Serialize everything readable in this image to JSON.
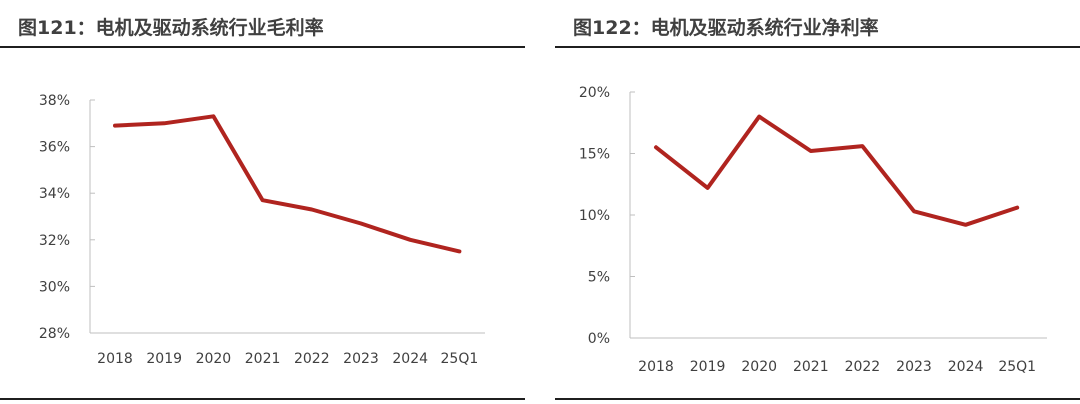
{
  "chart_data": [
    {
      "type": "line",
      "title": "图121：电机及驱动系统行业毛利率",
      "categories": [
        "2018",
        "2019",
        "2020",
        "2021",
        "2022",
        "2023",
        "2024",
        "25Q1"
      ],
      "series": [
        {
          "values": [
            36.9,
            37.0,
            37.3,
            33.7,
            33.3,
            32.7,
            32.0,
            31.5
          ]
        }
      ],
      "ylim": [
        28,
        38
      ],
      "yticks": [
        28,
        30,
        32,
        34,
        36,
        38
      ],
      "ytick_labels": [
        "28%",
        "30%",
        "32%",
        "34%",
        "36%",
        "38%"
      ],
      "xlabel": "",
      "ylabel": "",
      "grid": false,
      "color": "#b0241f"
    },
    {
      "type": "line",
      "title": "图122：电机及驱动系统行业净利率",
      "categories": [
        "2018",
        "2019",
        "2020",
        "2021",
        "2022",
        "2023",
        "2024",
        "25Q1"
      ],
      "series": [
        {
          "values": [
            15.5,
            12.2,
            18.0,
            15.2,
            15.6,
            10.3,
            9.2,
            10.6
          ]
        }
      ],
      "ylim": [
        0,
        20
      ],
      "yticks": [
        0,
        5,
        10,
        15,
        20
      ],
      "ytick_labels": [
        "0%",
        "5%",
        "10%",
        "15%",
        "20%"
      ],
      "xlabel": "",
      "ylabel": "",
      "grid": false,
      "color": "#b0241f"
    }
  ]
}
